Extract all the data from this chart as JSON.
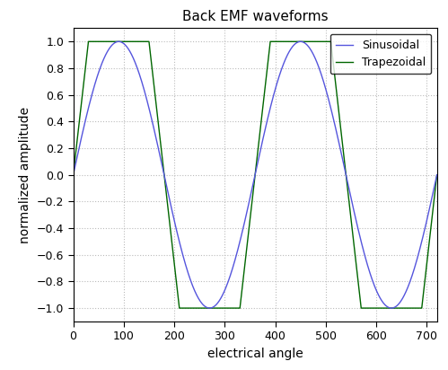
{
  "title": "Back EMF waveforms",
  "xlabel": "electrical angle",
  "ylabel": "normalized amplitude",
  "xlim": [
    0,
    720
  ],
  "ylim": [
    -1.1,
    1.1
  ],
  "xticks": [
    0,
    100,
    200,
    300,
    400,
    500,
    600,
    700
  ],
  "yticks": [
    -1,
    -0.8,
    -0.6,
    -0.4,
    -0.2,
    0,
    0.2,
    0.4,
    0.6,
    0.8,
    1
  ],
  "sine_color": "#5555dd",
  "trap_color": "#006600",
  "legend_labels": [
    "Sinusoidal",
    "Trapezoidal"
  ],
  "background_color": "#ffffff",
  "grid_color": "#bbbbbb",
  "trap_rise_deg": 30,
  "trap_flat_deg": 120,
  "num_points": 5000,
  "figwidth": 4.99,
  "figheight": 4.12,
  "dpi": 100
}
